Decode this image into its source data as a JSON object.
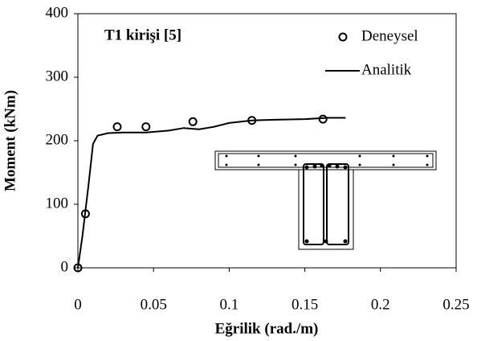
{
  "chart_data": {
    "type": "line",
    "title": "T1 kirişi [5]",
    "xlabel": "Eğrilik (rad./m)",
    "ylabel": "Moment (kNm)",
    "xlim": [
      0,
      0.25
    ],
    "xticks": [
      0,
      0.05,
      0.1,
      0.15,
      0.2,
      0.25
    ],
    "ylim": [
      0,
      400
    ],
    "yticks": [
      0,
      100,
      200,
      300,
      400
    ],
    "legend": "upper right",
    "series": [
      {
        "name": "Deneysel",
        "kind": "scatter",
        "color": "#000000",
        "x": [
          0,
          0.005,
          0.026,
          0.045,
          0.076,
          0.115,
          0.162
        ],
        "values": [
          0,
          85,
          222,
          222,
          230,
          232,
          234
        ]
      },
      {
        "name": "Analitik",
        "kind": "line",
        "color": "#000000",
        "x": [
          0,
          0.003,
          0.007,
          0.01,
          0.013,
          0.02,
          0.03,
          0.045,
          0.06,
          0.07,
          0.08,
          0.09,
          0.1,
          0.115,
          0.13,
          0.15,
          0.165,
          0.177
        ],
        "values": [
          0,
          50,
          130,
          195,
          208,
          212,
          213,
          213,
          216,
          220,
          218,
          222,
          228,
          232,
          233,
          234,
          236,
          236
        ]
      }
    ]
  }
}
